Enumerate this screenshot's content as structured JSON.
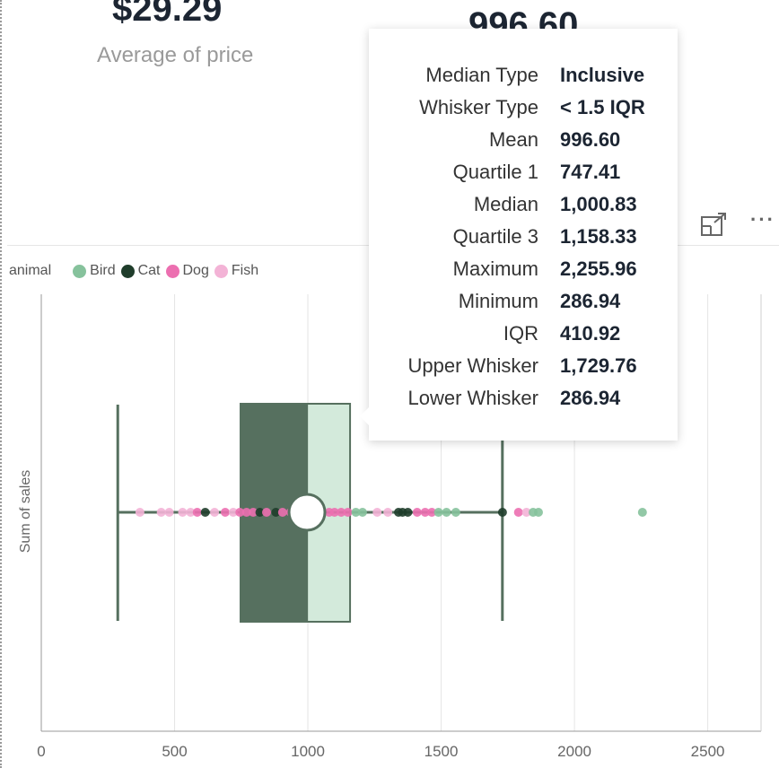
{
  "cards": {
    "left_value": "$29.29",
    "left_label": "Average of price",
    "right_value": "996.60"
  },
  "header_icons": {
    "focus": "focus-mode-icon",
    "more": "more-options-icon",
    "more_glyph": "···"
  },
  "legend": {
    "title": "animal",
    "items": [
      {
        "label": "Bird",
        "color": "#86c29c"
      },
      {
        "label": "Cat",
        "color": "#1f3d2b"
      },
      {
        "label": "Dog",
        "color": "#ec6fb0"
      },
      {
        "label": "Fish",
        "color": "#f3b3d6"
      }
    ]
  },
  "tooltip": {
    "rows": [
      {
        "label": "Median Type",
        "value": "Inclusive"
      },
      {
        "label": "Whisker Type",
        "value": "< 1.5 IQR"
      },
      {
        "label": "Mean",
        "value": "996.60"
      },
      {
        "label": "Quartile 1",
        "value": "747.41"
      },
      {
        "label": "Median",
        "value": "1,000.83"
      },
      {
        "label": "Quartile 3",
        "value": "1,158.33"
      },
      {
        "label": "Maximum",
        "value": "2,255.96"
      },
      {
        "label": "Minimum",
        "value": "286.94"
      },
      {
        "label": "IQR",
        "value": "410.92"
      },
      {
        "label": "Upper Whisker",
        "value": "1,729.76"
      },
      {
        "label": "Lower Whisker",
        "value": "286.94"
      }
    ]
  },
  "chart_data": {
    "type": "boxplot",
    "ylabel": "Sum of sales",
    "xlabel": "",
    "xlim": [
      0,
      2700
    ],
    "xticks": [
      0,
      500,
      1000,
      1500,
      2000,
      2500
    ],
    "grid": true,
    "legend_position": "top-left",
    "box": {
      "min": 286.94,
      "lower_whisker": 286.94,
      "q1": 747.41,
      "median": 1000.83,
      "mean": 996.6,
      "q3": 1158.33,
      "upper_whisker": 1729.76,
      "max": 2255.96
    },
    "colors": {
      "lower_box": "#56705f",
      "upper_box": "#d3eadb",
      "whisker": "#56705f",
      "grid": "#e5e5e5"
    },
    "points": [
      {
        "series": "Fish",
        "x": 370
      },
      {
        "series": "Fish",
        "x": 450
      },
      {
        "series": "Fish",
        "x": 480
      },
      {
        "series": "Fish",
        "x": 530
      },
      {
        "series": "Fish",
        "x": 560
      },
      {
        "series": "Dog",
        "x": 585
      },
      {
        "series": "Cat",
        "x": 615
      },
      {
        "series": "Fish",
        "x": 650
      },
      {
        "series": "Dog",
        "x": 690
      },
      {
        "series": "Fish",
        "x": 720
      },
      {
        "series": "Dog",
        "x": 745
      },
      {
        "series": "Dog",
        "x": 770
      },
      {
        "series": "Dog",
        "x": 795
      },
      {
        "series": "Cat",
        "x": 820
      },
      {
        "series": "Dog",
        "x": 845
      },
      {
        "series": "Cat",
        "x": 880
      },
      {
        "series": "Dog",
        "x": 905
      },
      {
        "series": "Dog",
        "x": 935
      },
      {
        "series": "Dog",
        "x": 1080
      },
      {
        "series": "Dog",
        "x": 1100
      },
      {
        "series": "Dog",
        "x": 1125
      },
      {
        "series": "Dog",
        "x": 1150
      },
      {
        "series": "Bird",
        "x": 1180
      },
      {
        "series": "Bird",
        "x": 1205
      },
      {
        "series": "Fish",
        "x": 1260
      },
      {
        "series": "Fish",
        "x": 1300
      },
      {
        "series": "Cat",
        "x": 1340
      },
      {
        "series": "Cat",
        "x": 1355
      },
      {
        "series": "Cat",
        "x": 1375
      },
      {
        "series": "Dog",
        "x": 1410
      },
      {
        "series": "Dog",
        "x": 1440
      },
      {
        "series": "Dog",
        "x": 1465
      },
      {
        "series": "Bird",
        "x": 1490
      },
      {
        "series": "Bird",
        "x": 1520
      },
      {
        "series": "Bird",
        "x": 1555
      },
      {
        "series": "Cat",
        "x": 1730
      },
      {
        "series": "Dog",
        "x": 1790
      },
      {
        "series": "Fish",
        "x": 1820
      },
      {
        "series": "Bird",
        "x": 1845
      },
      {
        "series": "Bird",
        "x": 1865
      },
      {
        "series": "Bird",
        "x": 2255
      }
    ]
  }
}
